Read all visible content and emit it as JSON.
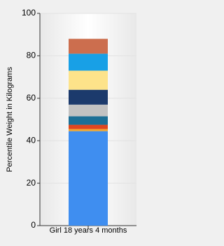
{
  "chart_data": {
    "type": "stacked_bar",
    "y_label": "Percentile Weight in Kilograms",
    "categories": [
      "Girl 18 years 4 months"
    ],
    "series": [
      {
        "color": "#3f8ef0",
        "values": [
          44.5
        ]
      },
      {
        "color": "#f0a830",
        "values": [
          1
        ]
      },
      {
        "color": "#e0461e",
        "values": [
          2
        ]
      },
      {
        "color": "#1c6f96",
        "values": [
          4
        ]
      },
      {
        "color": "#c2c2c2",
        "values": [
          5.5
        ]
      },
      {
        "color": "#1c3a6c",
        "values": [
          7
        ]
      },
      {
        "color": "#fde38a",
        "values": [
          9
        ]
      },
      {
        "color": "#18a0e6",
        "values": [
          8
        ]
      },
      {
        "color": "#cc6e4e",
        "values": [
          7
        ]
      }
    ],
    "ylim": [
      0,
      100
    ],
    "yticks": [
      0,
      20,
      40,
      60,
      80,
      100
    ],
    "grid": true
  }
}
